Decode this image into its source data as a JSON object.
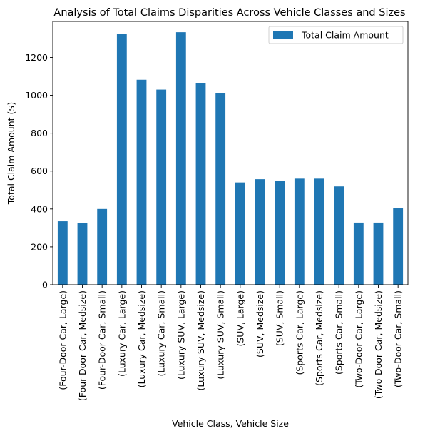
{
  "chart_data": {
    "type": "bar",
    "title": "Analysis of Total Claims Disparities Across Vehicle Classes and Sizes",
    "xlabel": "Vehicle Class, Vehicle Size",
    "ylabel": "Total Claim Amount ($)",
    "ylim": [
      0,
      1390
    ],
    "yticks": [
      0,
      200,
      400,
      600,
      800,
      1000,
      1200
    ],
    "legend_position": "top-right",
    "grid": false,
    "bar_color": "#1f77b4",
    "categories": [
      "(Four-Door Car, Large)",
      "(Four-Door Car, Medsize)",
      "(Four-Door Car, Small)",
      "(Luxury Car, Large)",
      "(Luxury Car, Medsize)",
      "(Luxury Car, Small)",
      "(Luxury SUV, Large)",
      "(Luxury SUV, Medsize)",
      "(Luxury SUV, Small)",
      "(SUV, Large)",
      "(SUV, Medsize)",
      "(SUV, Small)",
      "(Sports Car, Large)",
      "(Sports Car, Medsize)",
      "(Sports Car, Small)",
      "(Two-Door Car, Large)",
      "(Two-Door Car, Medsize)",
      "(Two-Door Car, Small)"
    ],
    "series": [
      {
        "name": "Total Claim Amount",
        "values": [
          335,
          325,
          400,
          1325,
          1082,
          1030,
          1333,
          1063,
          1010,
          540,
          557,
          548,
          560,
          560,
          519,
          328,
          328,
          403
        ]
      }
    ]
  }
}
